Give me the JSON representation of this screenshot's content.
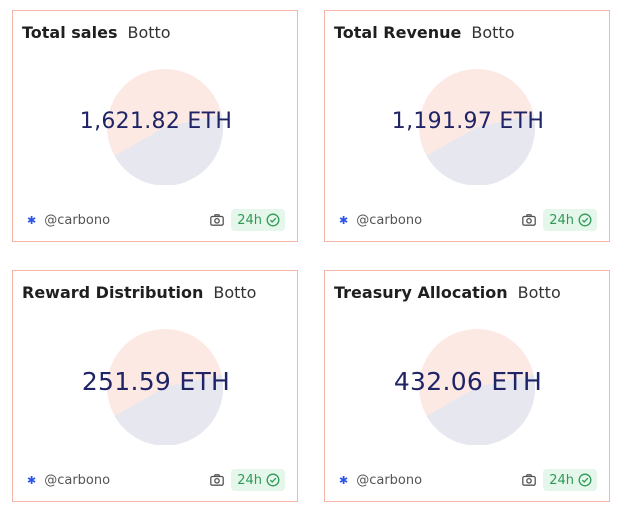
{
  "cards": [
    {
      "title": "Total sales",
      "project": "Botto",
      "value": "1,621.82 ETH",
      "author": "@carbono",
      "period": "24h",
      "icons": {
        "author": "snowflake-icon",
        "snapshot": "camera-icon",
        "verified": "check-circle-icon"
      }
    },
    {
      "title": "Total Revenue",
      "project": "Botto",
      "value": "1,191.97 ETH",
      "author": "@carbono",
      "period": "24h",
      "icons": {
        "author": "snowflake-icon",
        "snapshot": "camera-icon",
        "verified": "check-circle-icon"
      }
    },
    {
      "title": "Reward Distribution",
      "project": "Botto",
      "value": "251.59 ETH",
      "author": "@carbono",
      "period": "24h",
      "icons": {
        "author": "snowflake-icon",
        "snapshot": "camera-icon",
        "verified": "check-circle-icon"
      }
    },
    {
      "title": "Treasury Allocation",
      "project": "Botto",
      "value": "432.06 ETH",
      "author": "@carbono",
      "period": "24h",
      "icons": {
        "author": "snowflake-icon",
        "snapshot": "camera-icon",
        "verified": "check-circle-icon"
      }
    }
  ],
  "colors": {
    "card_border": "#f4b5a6",
    "value_text": "#1f2466",
    "pie_primary": "#fde9e4",
    "pie_secondary": "#e6e7ef",
    "badge_bg": "#e5f6ea",
    "badge_text": "#2f9a56",
    "author_icon": "#2b55e8"
  }
}
